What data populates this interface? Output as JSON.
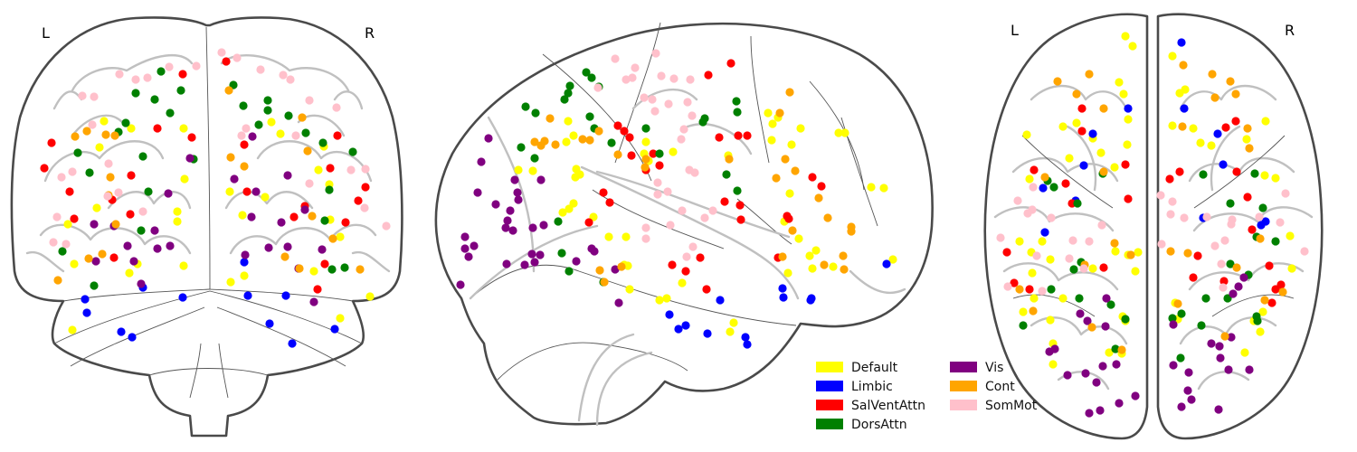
{
  "views": {
    "coronal": {
      "left_label": "L",
      "right_label": "R"
    },
    "axial": {
      "left_label": "L",
      "right_label": "R"
    }
  },
  "legend": {
    "entries": [
      {
        "key": "default",
        "label": "Default",
        "color": "#ffff00"
      },
      {
        "key": "limbic",
        "label": "Limbic",
        "color": "#0000ff"
      },
      {
        "key": "salventattn",
        "label": "SalVentAttn",
        "color": "#ff0000"
      },
      {
        "key": "dorsattn",
        "label": "DorsAttn",
        "color": "#008000"
      },
      {
        "key": "vis",
        "label": "Vis",
        "color": "#800080"
      },
      {
        "key": "cont",
        "label": "Cont",
        "color": "#ffa500"
      },
      {
        "key": "sommot",
        "label": "SomMot",
        "color": "#ffc0cb"
      }
    ]
  }
}
